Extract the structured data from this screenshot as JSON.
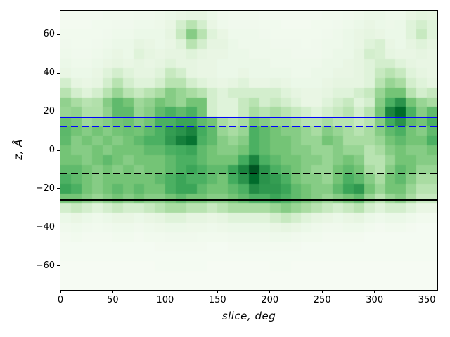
{
  "chart_data": {
    "type": "heatmap",
    "xlabel": "slice, deg",
    "ylabel": "z, Å",
    "xlim": [
      0,
      360
    ],
    "ylim": [
      -72.5,
      72.5
    ],
    "x_bin_width_deg": 10,
    "z_bin_width_angstrom": 5,
    "n_cols": 36,
    "n_rows": 29,
    "grid": "on_axes_box_no_gridlines",
    "legend": "none",
    "x_ticks": [
      0,
      50,
      100,
      150,
      200,
      250,
      300,
      350
    ],
    "x_tick_labels": [
      "0",
      "50",
      "100",
      "150",
      "200",
      "250",
      "300",
      "350"
    ],
    "y_ticks": [
      -60,
      -40,
      -20,
      0,
      20,
      40,
      60
    ],
    "y_tick_labels": [
      "−60",
      "−40",
      "−20",
      "0",
      "20",
      "40",
      "60"
    ],
    "colormap": "Greens",
    "colormap_stops": [
      [
        0.0,
        "#f7fcf5"
      ],
      [
        0.125,
        "#e5f5e0"
      ],
      [
        0.25,
        "#c7e9c0"
      ],
      [
        0.375,
        "#a1d99b"
      ],
      [
        0.5,
        "#74c476"
      ],
      [
        0.625,
        "#41ab5d"
      ],
      [
        0.75,
        "#238b45"
      ],
      [
        0.875,
        "#006d2c"
      ],
      [
        1.0,
        "#00441b"
      ]
    ],
    "row_z_centers_top_to_bottom": [
      70,
      65,
      60,
      55,
      50,
      45,
      40,
      35,
      30,
      25,
      20,
      15,
      10,
      5,
      0,
      -5,
      -10,
      -15,
      -20,
      -25,
      -30,
      -35,
      -40,
      -45,
      -50,
      -55,
      -60,
      -65,
      -70
    ],
    "values": [
      [
        0.03,
        0.03,
        0.03,
        0.03,
        0.04,
        0.04,
        0.04,
        0.05,
        0.05,
        0.06,
        0.08,
        0.1,
        0.12,
        0.12,
        0.08,
        0.05,
        0.04,
        0.04,
        0.04,
        0.03,
        0.03,
        0.03,
        0.03,
        0.03,
        0.03,
        0.04,
        0.04,
        0.05,
        0.06,
        0.08,
        0.08,
        0.06,
        0.06,
        0.1,
        0.13,
        0.12
      ],
      [
        0.03,
        0.03,
        0.03,
        0.04,
        0.04,
        0.05,
        0.05,
        0.06,
        0.06,
        0.07,
        0.1,
        0.2,
        0.3,
        0.2,
        0.1,
        0.06,
        0.05,
        0.05,
        0.05,
        0.04,
        0.04,
        0.03,
        0.03,
        0.03,
        0.04,
        0.04,
        0.05,
        0.06,
        0.08,
        0.1,
        0.08,
        0.07,
        0.08,
        0.15,
        0.2,
        0.15
      ],
      [
        0.04,
        0.04,
        0.04,
        0.04,
        0.05,
        0.06,
        0.06,
        0.08,
        0.08,
        0.08,
        0.12,
        0.25,
        0.45,
        0.3,
        0.15,
        0.1,
        0.06,
        0.06,
        0.06,
        0.05,
        0.04,
        0.04,
        0.04,
        0.04,
        0.04,
        0.05,
        0.06,
        0.08,
        0.1,
        0.12,
        0.1,
        0.08,
        0.08,
        0.15,
        0.25,
        0.15
      ],
      [
        0.05,
        0.04,
        0.04,
        0.05,
        0.06,
        0.08,
        0.08,
        0.12,
        0.1,
        0.08,
        0.1,
        0.15,
        0.3,
        0.2,
        0.12,
        0.12,
        0.08,
        0.06,
        0.06,
        0.06,
        0.05,
        0.05,
        0.05,
        0.04,
        0.05,
        0.06,
        0.06,
        0.08,
        0.1,
        0.15,
        0.18,
        0.1,
        0.08,
        0.12,
        0.15,
        0.12
      ],
      [
        0.06,
        0.05,
        0.05,
        0.06,
        0.08,
        0.1,
        0.08,
        0.15,
        0.12,
        0.1,
        0.12,
        0.12,
        0.15,
        0.12,
        0.1,
        0.1,
        0.08,
        0.08,
        0.06,
        0.06,
        0.06,
        0.06,
        0.05,
        0.05,
        0.05,
        0.06,
        0.08,
        0.08,
        0.12,
        0.2,
        0.18,
        0.12,
        0.1,
        0.1,
        0.12,
        0.1
      ],
      [
        0.08,
        0.06,
        0.06,
        0.08,
        0.1,
        0.12,
        0.1,
        0.12,
        0.1,
        0.12,
        0.15,
        0.12,
        0.12,
        0.1,
        0.1,
        0.08,
        0.08,
        0.08,
        0.08,
        0.08,
        0.06,
        0.06,
        0.06,
        0.06,
        0.06,
        0.08,
        0.08,
        0.1,
        0.12,
        0.15,
        0.2,
        0.2,
        0.15,
        0.12,
        0.1,
        0.1
      ],
      [
        0.1,
        0.08,
        0.08,
        0.1,
        0.15,
        0.2,
        0.15,
        0.12,
        0.12,
        0.15,
        0.25,
        0.2,
        0.12,
        0.1,
        0.1,
        0.08,
        0.08,
        0.1,
        0.08,
        0.08,
        0.08,
        0.08,
        0.06,
        0.06,
        0.08,
        0.08,
        0.1,
        0.1,
        0.12,
        0.15,
        0.25,
        0.3,
        0.25,
        0.15,
        0.12,
        0.1
      ],
      [
        0.2,
        0.12,
        0.1,
        0.12,
        0.2,
        0.3,
        0.2,
        0.15,
        0.15,
        0.2,
        0.3,
        0.3,
        0.2,
        0.15,
        0.12,
        0.1,
        0.12,
        0.15,
        0.1,
        0.1,
        0.12,
        0.1,
        0.08,
        0.08,
        0.08,
        0.1,
        0.12,
        0.12,
        0.12,
        0.15,
        0.3,
        0.4,
        0.35,
        0.2,
        0.15,
        0.12
      ],
      [
        0.3,
        0.2,
        0.15,
        0.2,
        0.3,
        0.4,
        0.3,
        0.25,
        0.3,
        0.35,
        0.45,
        0.4,
        0.35,
        0.3,
        0.2,
        0.15,
        0.2,
        0.2,
        0.2,
        0.2,
        0.2,
        0.15,
        0.12,
        0.1,
        0.1,
        0.12,
        0.15,
        0.15,
        0.2,
        0.25,
        0.4,
        0.5,
        0.5,
        0.3,
        0.2,
        0.25
      ],
      [
        0.42,
        0.35,
        0.3,
        0.32,
        0.45,
        0.55,
        0.5,
        0.38,
        0.42,
        0.5,
        0.45,
        0.4,
        0.5,
        0.5,
        0.2,
        0.15,
        0.15,
        0.25,
        0.3,
        0.2,
        0.25,
        0.2,
        0.15,
        0.1,
        0.1,
        0.15,
        0.2,
        0.25,
        0.15,
        0.2,
        0.45,
        0.6,
        0.72,
        0.5,
        0.4,
        0.35
      ],
      [
        0.4,
        0.42,
        0.33,
        0.33,
        0.42,
        0.55,
        0.55,
        0.4,
        0.45,
        0.55,
        0.6,
        0.55,
        0.6,
        0.5,
        0.2,
        0.15,
        0.15,
        0.25,
        0.35,
        0.3,
        0.35,
        0.3,
        0.25,
        0.2,
        0.15,
        0.2,
        0.25,
        0.3,
        0.2,
        0.3,
        0.5,
        0.78,
        0.88,
        0.6,
        0.45,
        0.55
      ],
      [
        0.52,
        0.48,
        0.38,
        0.42,
        0.45,
        0.5,
        0.52,
        0.45,
        0.5,
        0.6,
        0.6,
        0.65,
        0.65,
        0.55,
        0.5,
        0.35,
        0.3,
        0.35,
        0.5,
        0.45,
        0.4,
        0.4,
        0.35,
        0.3,
        0.3,
        0.35,
        0.3,
        0.3,
        0.25,
        0.3,
        0.45,
        0.62,
        0.72,
        0.55,
        0.5,
        0.6
      ],
      [
        0.56,
        0.5,
        0.45,
        0.5,
        0.45,
        0.5,
        0.52,
        0.5,
        0.55,
        0.6,
        0.68,
        0.72,
        0.78,
        0.62,
        0.55,
        0.4,
        0.35,
        0.4,
        0.6,
        0.55,
        0.5,
        0.45,
        0.45,
        0.4,
        0.35,
        0.45,
        0.4,
        0.35,
        0.3,
        0.35,
        0.45,
        0.55,
        0.6,
        0.5,
        0.45,
        0.55
      ],
      [
        0.55,
        0.45,
        0.5,
        0.45,
        0.5,
        0.45,
        0.5,
        0.55,
        0.6,
        0.6,
        0.7,
        0.8,
        0.85,
        0.6,
        0.55,
        0.45,
        0.4,
        0.45,
        0.6,
        0.55,
        0.5,
        0.5,
        0.45,
        0.4,
        0.4,
        0.5,
        0.45,
        0.35,
        0.35,
        0.35,
        0.4,
        0.5,
        0.55,
        0.5,
        0.5,
        0.6
      ],
      [
        0.5,
        0.45,
        0.45,
        0.5,
        0.45,
        0.5,
        0.5,
        0.5,
        0.55,
        0.55,
        0.6,
        0.62,
        0.65,
        0.55,
        0.5,
        0.45,
        0.45,
        0.5,
        0.6,
        0.55,
        0.5,
        0.5,
        0.45,
        0.45,
        0.4,
        0.4,
        0.45,
        0.4,
        0.4,
        0.3,
        0.35,
        0.45,
        0.5,
        0.45,
        0.45,
        0.5
      ],
      [
        0.5,
        0.5,
        0.45,
        0.5,
        0.55,
        0.5,
        0.45,
        0.5,
        0.5,
        0.5,
        0.55,
        0.6,
        0.6,
        0.55,
        0.5,
        0.5,
        0.5,
        0.62,
        0.78,
        0.6,
        0.55,
        0.5,
        0.5,
        0.45,
        0.45,
        0.4,
        0.45,
        0.5,
        0.45,
        0.3,
        0.3,
        0.4,
        0.5,
        0.5,
        0.45,
        0.45
      ],
      [
        0.55,
        0.55,
        0.5,
        0.45,
        0.5,
        0.45,
        0.5,
        0.45,
        0.5,
        0.5,
        0.55,
        0.6,
        0.65,
        0.6,
        0.55,
        0.55,
        0.65,
        0.78,
        0.95,
        0.72,
        0.6,
        0.55,
        0.5,
        0.45,
        0.4,
        0.4,
        0.5,
        0.55,
        0.5,
        0.35,
        0.3,
        0.45,
        0.55,
        0.5,
        0.4,
        0.4
      ],
      [
        0.6,
        0.55,
        0.5,
        0.45,
        0.5,
        0.5,
        0.5,
        0.5,
        0.5,
        0.55,
        0.6,
        0.65,
        0.6,
        0.6,
        0.55,
        0.5,
        0.62,
        0.72,
        0.88,
        0.72,
        0.68,
        0.6,
        0.5,
        0.45,
        0.45,
        0.4,
        0.5,
        0.6,
        0.55,
        0.45,
        0.35,
        0.5,
        0.55,
        0.45,
        0.35,
        0.35
      ],
      [
        0.65,
        0.6,
        0.5,
        0.45,
        0.5,
        0.55,
        0.5,
        0.55,
        0.5,
        0.5,
        0.6,
        0.65,
        0.65,
        0.55,
        0.5,
        0.5,
        0.55,
        0.6,
        0.75,
        0.7,
        0.7,
        0.65,
        0.55,
        0.5,
        0.45,
        0.45,
        0.55,
        0.65,
        0.7,
        0.5,
        0.4,
        0.5,
        0.5,
        0.4,
        0.3,
        0.3
      ],
      [
        0.5,
        0.5,
        0.45,
        0.4,
        0.45,
        0.5,
        0.45,
        0.5,
        0.45,
        0.45,
        0.5,
        0.55,
        0.5,
        0.5,
        0.45,
        0.45,
        0.5,
        0.55,
        0.6,
        0.6,
        0.65,
        0.6,
        0.55,
        0.5,
        0.45,
        0.4,
        0.45,
        0.5,
        0.55,
        0.4,
        0.3,
        0.4,
        0.45,
        0.35,
        0.25,
        0.25
      ],
      [
        0.2,
        0.25,
        0.2,
        0.15,
        0.2,
        0.25,
        0.2,
        0.2,
        0.25,
        0.3,
        0.35,
        0.35,
        0.3,
        0.3,
        0.25,
        0.3,
        0.35,
        0.35,
        0.35,
        0.35,
        0.4,
        0.45,
        0.4,
        0.35,
        0.3,
        0.25,
        0.2,
        0.25,
        0.3,
        0.2,
        0.15,
        0.2,
        0.2,
        0.15,
        0.1,
        0.1
      ],
      [
        0.08,
        0.1,
        0.08,
        0.06,
        0.08,
        0.1,
        0.1,
        0.08,
        0.1,
        0.12,
        0.15,
        0.15,
        0.12,
        0.12,
        0.1,
        0.12,
        0.15,
        0.15,
        0.15,
        0.15,
        0.2,
        0.25,
        0.2,
        0.15,
        0.12,
        0.1,
        0.08,
        0.1,
        0.12,
        0.08,
        0.06,
        0.08,
        0.08,
        0.06,
        0.04,
        0.04
      ],
      [
        0.05,
        0.06,
        0.05,
        0.04,
        0.05,
        0.06,
        0.06,
        0.05,
        0.06,
        0.07,
        0.08,
        0.08,
        0.07,
        0.07,
        0.06,
        0.07,
        0.08,
        0.08,
        0.08,
        0.08,
        0.1,
        0.12,
        0.1,
        0.08,
        0.06,
        0.05,
        0.05,
        0.06,
        0.06,
        0.04,
        0.03,
        0.04,
        0.04,
        0.03,
        0.02,
        0.02
      ],
      [
        0.03,
        0.04,
        0.03,
        0.03,
        0.03,
        0.04,
        0.04,
        0.03,
        0.04,
        0.04,
        0.05,
        0.05,
        0.05,
        0.04,
        0.04,
        0.04,
        0.05,
        0.05,
        0.05,
        0.05,
        0.06,
        0.06,
        0.05,
        0.04,
        0.04,
        0.03,
        0.03,
        0.03,
        0.03,
        0.02,
        0.02,
        0.02,
        0.02,
        0.02,
        0.02,
        0.02
      ],
      [
        0.02,
        0.02,
        0.02,
        0.02,
        0.02,
        0.02,
        0.02,
        0.02,
        0.02,
        0.03,
        0.03,
        0.03,
        0.03,
        0.03,
        0.02,
        0.02,
        0.03,
        0.03,
        0.03,
        0.03,
        0.03,
        0.03,
        0.03,
        0.02,
        0.02,
        0.02,
        0.02,
        0.02,
        0.02,
        0.02,
        0.02,
        0.02,
        0.02,
        0.02,
        0.02,
        0.02
      ],
      [
        0.02,
        0.02,
        0.02,
        0.02,
        0.02,
        0.02,
        0.02,
        0.02,
        0.02,
        0.02,
        0.02,
        0.02,
        0.02,
        0.02,
        0.02,
        0.02,
        0.02,
        0.02,
        0.02,
        0.02,
        0.02,
        0.02,
        0.02,
        0.02,
        0.02,
        0.02,
        0.02,
        0.02,
        0.02,
        0.02,
        0.02,
        0.02,
        0.02,
        0.02,
        0.02,
        0.02
      ],
      [
        0.01,
        0.01,
        0.01,
        0.01,
        0.01,
        0.01,
        0.01,
        0.01,
        0.01,
        0.02,
        0.02,
        0.02,
        0.02,
        0.02,
        0.01,
        0.01,
        0.01,
        0.01,
        0.01,
        0.01,
        0.02,
        0.02,
        0.01,
        0.01,
        0.01,
        0.01,
        0.01,
        0.01,
        0.01,
        0.01,
        0.01,
        0.01,
        0.01,
        0.01,
        0.01,
        0.01
      ],
      [
        0.01,
        0.01,
        0.01,
        0.01,
        0.01,
        0.01,
        0.01,
        0.01,
        0.01,
        0.01,
        0.01,
        0.01,
        0.01,
        0.01,
        0.01,
        0.01,
        0.01,
        0.01,
        0.01,
        0.01,
        0.01,
        0.01,
        0.01,
        0.01,
        0.01,
        0.01,
        0.01,
        0.01,
        0.01,
        0.01,
        0.01,
        0.01,
        0.01,
        0.01,
        0.01,
        0.01
      ],
      [
        0.01,
        0.01,
        0.01,
        0.01,
        0.01,
        0.01,
        0.01,
        0.01,
        0.01,
        0.01,
        0.01,
        0.01,
        0.01,
        0.01,
        0.01,
        0.01,
        0.01,
        0.01,
        0.01,
        0.01,
        0.01,
        0.01,
        0.01,
        0.01,
        0.01,
        0.01,
        0.01,
        0.01,
        0.01,
        0.01,
        0.01,
        0.01,
        0.01,
        0.01,
        0.01,
        0.01
      ]
    ],
    "hlines": [
      {
        "name": "blue-solid-line",
        "z": 17.0,
        "color": "#0000ff",
        "style": "solid"
      },
      {
        "name": "blue-dashed-line",
        "z": 12.5,
        "color": "#0000ff",
        "style": "dashed"
      },
      {
        "name": "black-dashed-line",
        "z": -12.0,
        "color": "#000000",
        "style": "dashed"
      },
      {
        "name": "black-solid-line",
        "z": -26.0,
        "color": "#000000",
        "style": "solid"
      }
    ]
  }
}
